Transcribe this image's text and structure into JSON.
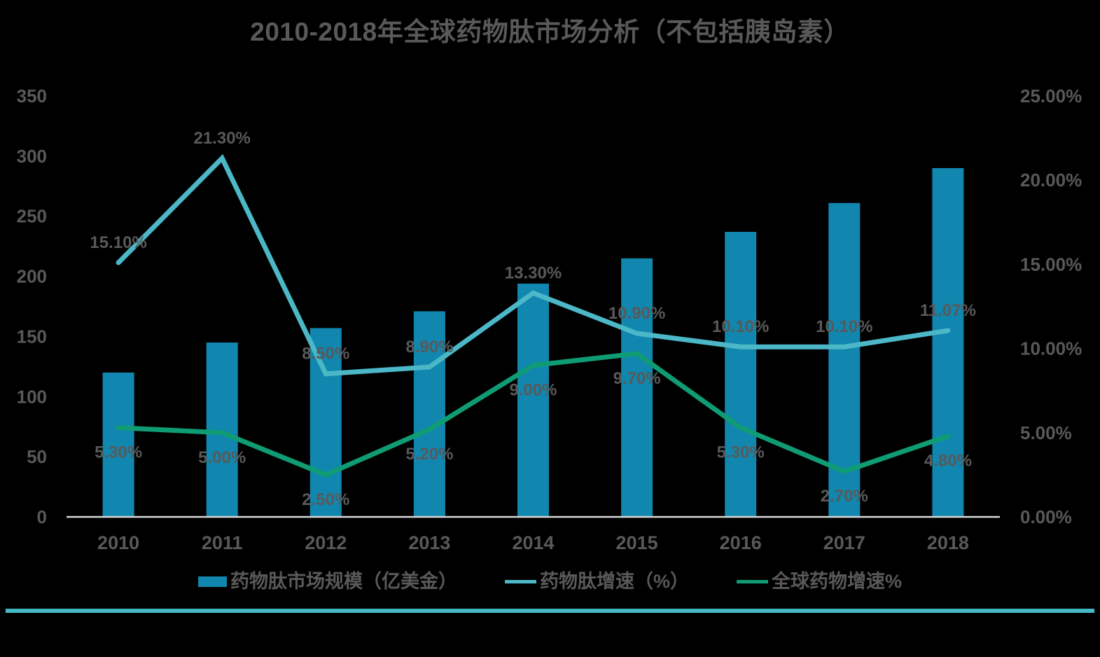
{
  "title": "2010-2018年全球药物肽市场分析（不包括胰岛素）",
  "colors": {
    "background": "#000000",
    "text_gray": "#595959",
    "bar_blue": "#1186ae",
    "line_teal": "#4bb7c7",
    "line_green": "#0f9c74",
    "axis_line": "#d9d9d9",
    "divider_teal": "#46b8c5"
  },
  "chart_data": {
    "type": "bar",
    "subtype": "combo-bar-line",
    "title": "2010-2018年全球药物肽市场分析（不包括胰岛素）",
    "categories": [
      "2010",
      "2011",
      "2012",
      "2013",
      "2014",
      "2015",
      "2016",
      "2017",
      "2018"
    ],
    "series": [
      {
        "name": "药物肽市场规模（亿美金）",
        "type": "bar",
        "axis": "left",
        "color": "#1186ae",
        "values": [
          120,
          145,
          157,
          171,
          194,
          215,
          237,
          261,
          290
        ]
      },
      {
        "name": "药物肽增速（%）",
        "type": "line",
        "axis": "right",
        "color": "#4bb7c7",
        "values": [
          15.1,
          21.3,
          8.5,
          8.9,
          13.3,
          10.9,
          10.1,
          10.1,
          11.07
        ],
        "labels": [
          "15.10%",
          "21.30%",
          "8.50%",
          "8.90%",
          "13.30%",
          "10.90%",
          "10.10%",
          "10.10%",
          "11.07%"
        ],
        "label_position": "above"
      },
      {
        "name": "全球药物增速%",
        "type": "line",
        "axis": "right",
        "color": "#0f9c74",
        "values": [
          5.3,
          5.0,
          2.5,
          5.2,
          9.0,
          9.7,
          5.3,
          2.7,
          4.8
        ],
        "labels": [
          "5.30%",
          "5.00%",
          "2.50%",
          "5.20%",
          "9.00%",
          "9.70%",
          "5.30%",
          "2.70%",
          "4.80%"
        ],
        "label_position": "below"
      }
    ],
    "left_axis": {
      "min": 0,
      "max": 350,
      "ticks": [
        "350",
        "300",
        "250",
        "200",
        "150",
        "100",
        "50",
        "0"
      ]
    },
    "right_axis": {
      "min": 0,
      "max": 25,
      "ticks": [
        "25.00%",
        "20.00%",
        "15.00%",
        "10.00%",
        "5.00%",
        "0.00%"
      ]
    },
    "grid": false,
    "legend_position": "bottom"
  },
  "legend": {
    "items": [
      {
        "label": "药物肽市场规模（亿美金）",
        "swatch": "rect",
        "color": "#1186ae"
      },
      {
        "label": "药物肽增速（%）",
        "swatch": "line",
        "color": "#4bb7c7"
      },
      {
        "label": "全球药物增速%",
        "swatch": "line",
        "color": "#0f9c74"
      }
    ]
  }
}
